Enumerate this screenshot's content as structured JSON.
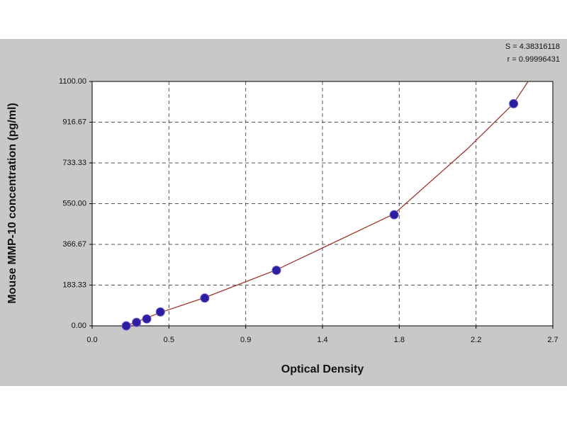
{
  "chart_data": {
    "type": "scatter",
    "x_label": "Optical Density",
    "y_label": "Mouse MMP-10 concentration (pg/ml)",
    "annotations": [
      "S = 4.38316118",
      "r = 0.99996431"
    ],
    "x": [
      0.2,
      0.26,
      0.32,
      0.4,
      0.66,
      1.08,
      1.77,
      2.47
    ],
    "values": [
      0,
      15.6,
      31.25,
      62.5,
      125,
      250,
      500,
      1000
    ],
    "color": "#2b1ea0",
    "curve": {
      "x": [
        0.2,
        0.4,
        0.66,
        1.08,
        1.77,
        2.2,
        2.47,
        2.555
      ],
      "values": [
        0,
        60,
        127,
        252,
        504,
        797,
        1001,
        1100
      ],
      "color": "#a3342c"
    },
    "xlim": [
      0,
      2.7
    ],
    "ylim": [
      0,
      1100
    ],
    "xticks": [
      {
        "value": 0,
        "label": "0.0"
      },
      {
        "value": 0.45,
        "label": "0.5"
      },
      0.9,
      {
        "value": 1.35,
        "label": "1.4"
      },
      1.8,
      {
        "value": 2.25,
        "label": "2.2"
      },
      2.7
    ],
    "yticks": [
      {
        "value": 0,
        "label": "0.00"
      },
      {
        "value": 183.33,
        "label": "183.33"
      },
      {
        "value": 366.67,
        "label": "366.67"
      },
      {
        "value": 550,
        "label": "550.00"
      },
      {
        "value": 733.33,
        "label": "733.33"
      },
      {
        "value": 916.67,
        "label": "916.67"
      },
      {
        "value": 1100,
        "label": "1100.00"
      }
    ],
    "grid": true
  }
}
